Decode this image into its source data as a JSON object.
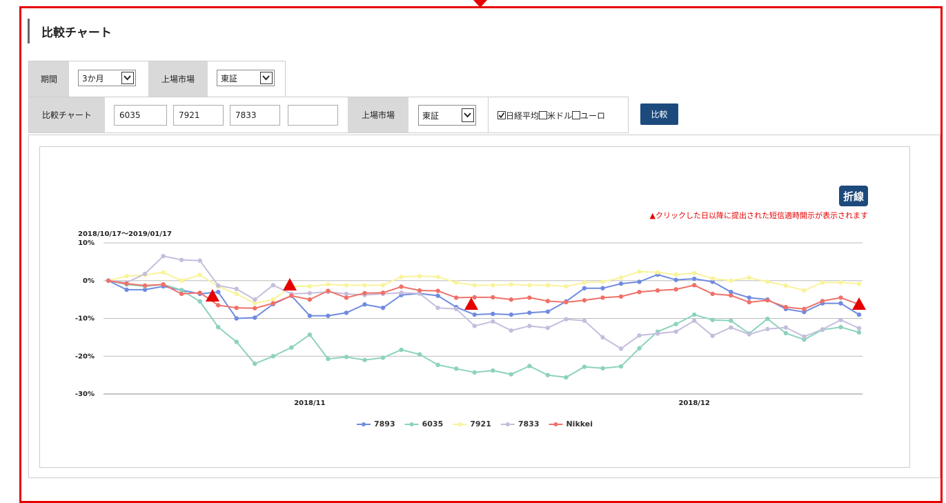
{
  "header": {
    "title": "比較チャート"
  },
  "form": {
    "period_label": "期間",
    "period": "3か月",
    "market_label": "上場市場",
    "market": "東証",
    "compare_label": "比較チャート",
    "codes": [
      "6035",
      "7921",
      "7833"
    ],
    "compare_market_label": "上場市場",
    "compare_market": "東証",
    "checkboxes": [
      {
        "label": "日経平均",
        "checked": true
      },
      {
        "label": "米ドル",
        "checked": false
      },
      {
        "label": "ユーロ",
        "checked": false
      }
    ],
    "submit": "比較"
  },
  "chart_data": {
    "type": "line",
    "toggle": "折線",
    "note": "▲クリックした日以降に提出された短信適時開示が表示されます",
    "subtitle": "2018/10/17～2019/01/17",
    "categories": [
      null,
      null,
      null,
      null,
      null,
      null,
      null,
      null,
      null,
      null,
      null,
      "2018/11",
      null,
      null,
      null,
      null,
      null,
      null,
      null,
      null,
      null,
      null,
      null,
      null,
      null,
      null,
      null,
      null,
      null,
      null,
      null,
      null,
      "2018/12",
      null,
      null,
      null,
      null,
      null,
      null,
      null,
      null,
      null
    ],
    "ylim": [
      -30,
      10
    ],
    "yticks": [
      {
        "value": -30,
        "label": "-30%"
      },
      {
        "value": -20,
        "label": "-20%"
      },
      {
        "value": -10,
        "label": "-10%"
      },
      {
        "value": 0,
        "label": "0%"
      },
      {
        "value": 10,
        "label": "10%"
      }
    ],
    "grid": true,
    "series": [
      {
        "name": "7893",
        "color": "#6f8be0",
        "values": [
          0,
          -2.4,
          -2.4,
          -1.5,
          -2.5,
          -3.5,
          -3,
          -10,
          -9.8,
          -6.2,
          -4,
          -9.3,
          -9.3,
          -8.5,
          -6.3,
          -7.2,
          -3.8,
          -3.4,
          -4,
          -7,
          -9,
          -8.8,
          -9,
          -8.5,
          -8.2,
          -5.5,
          -2,
          -2,
          -0.8,
          -0.3,
          1.6,
          0.2,
          0.5,
          -0.3,
          -3,
          -4.5,
          -5,
          -7.5,
          -8.3,
          -6,
          -6,
          -9
        ]
      },
      {
        "name": "6035",
        "color": "#8cd2be",
        "values": [
          0,
          -1,
          -1.5,
          -1,
          -2.5,
          -5.5,
          -12.3,
          -16.2,
          -22,
          -20,
          -17.7,
          -14.3,
          -20.7,
          -20.2,
          -21,
          -20.4,
          -18.3,
          -19.5,
          -22.3,
          -23.3,
          -24.3,
          -23.8,
          -24.8,
          -22.6,
          -25,
          -25.6,
          -22.8,
          -23.2,
          -22.7,
          -17.9,
          -13.5,
          -11.5,
          -9,
          -10.4,
          -10.6,
          -14,
          -10.1,
          -13.9,
          -15.6,
          -13,
          -12.3,
          -13.7
        ]
      },
      {
        "name": "7921",
        "color": "#f9f39a",
        "values": [
          0,
          1.2,
          1.5,
          2.2,
          0,
          1.5,
          -1.5,
          -3.5,
          -6,
          -5,
          -1.5,
          -1.5,
          -1,
          -1.2,
          -1.2,
          -1.2,
          1,
          1.2,
          1,
          -0.5,
          -1.2,
          -1.2,
          -1,
          -1.2,
          -1.2,
          -1.5,
          -0.5,
          -0.3,
          0.8,
          2.4,
          2.2,
          1.6,
          2,
          0.6,
          0,
          0.8,
          -0.3,
          -1.3,
          -2.6,
          -0.5,
          -0.5,
          -0.8
        ]
      },
      {
        "name": "7833",
        "color": "#c4bedd",
        "values": [
          0,
          -0.5,
          1.8,
          6.5,
          5.5,
          5.3,
          -1.3,
          -2.2,
          -5,
          -1.2,
          -3.5,
          -3.3,
          -3,
          -3.5,
          -3.8,
          -3.5,
          -3.2,
          -3.4,
          -7.2,
          -7.5,
          -12,
          -10.8,
          -13.2,
          -12,
          -12.5,
          -10.2,
          -10.6,
          -15,
          -18,
          -14.5,
          -14,
          -13.5,
          -10.6,
          -14.6,
          -12.4,
          -14.2,
          -12.8,
          -12.4,
          -14.8,
          -12.9,
          -10.4,
          -12.6
        ]
      },
      {
        "name": "Nikkei",
        "color": "#f07068",
        "values": [
          0,
          -0.8,
          -1.3,
          -1,
          -3.5,
          -3.2,
          -6.5,
          -7.2,
          -7.3,
          -6,
          -4,
          -5,
          -2.7,
          -4.5,
          -3.3,
          -3.2,
          -1.6,
          -2.6,
          -2.7,
          -4.5,
          -4.4,
          -4.4,
          -5,
          -4.5,
          -5.4,
          -5.7,
          -5.2,
          -4.5,
          -4.2,
          -3,
          -2.6,
          -2.3,
          -1.2,
          -3.5,
          -3.9,
          -5.7,
          -5.2,
          -7,
          -7.5,
          -5.4,
          -4.5,
          -6.3
        ]
      }
    ]
  }
}
